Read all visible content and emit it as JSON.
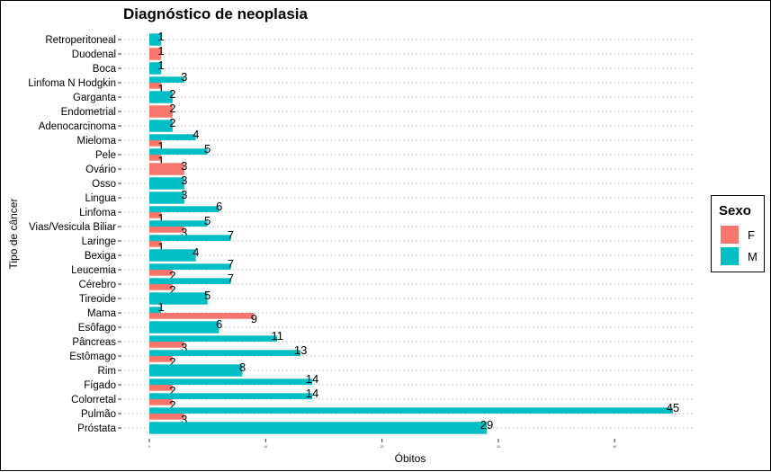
{
  "chart_data": {
    "type": "bar",
    "orientation": "horizontal",
    "title": "Diagnóstico de neoplasia",
    "xlabel": "Óbitos",
    "ylabel": "Tipo de câncer",
    "x_ticks": [
      "0",
      "10",
      "20",
      "30",
      "40"
    ],
    "xlim": [
      0,
      46
    ],
    "grid": true,
    "legend": {
      "title": "Sexo",
      "position": "right",
      "entries": [
        "F",
        "M"
      ]
    },
    "colors": {
      "F": "#F8766D",
      "M": "#00BFC4"
    },
    "categories": [
      "Retroperitoneal",
      "Duodenal",
      "Boca",
      "Linfoma N Hodgkin",
      "Garganta",
      "Endometrial",
      "Adenocarcinoma",
      "Mieloma",
      "Pele",
      "Ovário",
      "Osso",
      "Lingua",
      "Linfoma",
      "Vias/Vesicula Biliar",
      "Laringe",
      "Bexiga",
      "Leucemia",
      "Cérebro",
      "Tireoide",
      "Mama",
      "Esôfago",
      "Pâncreas",
      "Estômago",
      "Rim",
      "Fígado",
      "Colorretal",
      "Pulmão",
      "Próstata"
    ],
    "series": [
      {
        "name": "F",
        "values": [
          null,
          1,
          null,
          1,
          null,
          2,
          null,
          1,
          1,
          3,
          null,
          null,
          1,
          3,
          1,
          null,
          2,
          2,
          null,
          9,
          null,
          3,
          2,
          null,
          2,
          2,
          3,
          null
        ]
      },
      {
        "name": "M",
        "values": [
          1,
          null,
          1,
          3,
          2,
          null,
          2,
          4,
          5,
          null,
          3,
          3,
          6,
          5,
          7,
          4,
          7,
          7,
          5,
          1,
          6,
          11,
          13,
          8,
          14,
          14,
          45,
          29
        ]
      }
    ]
  }
}
